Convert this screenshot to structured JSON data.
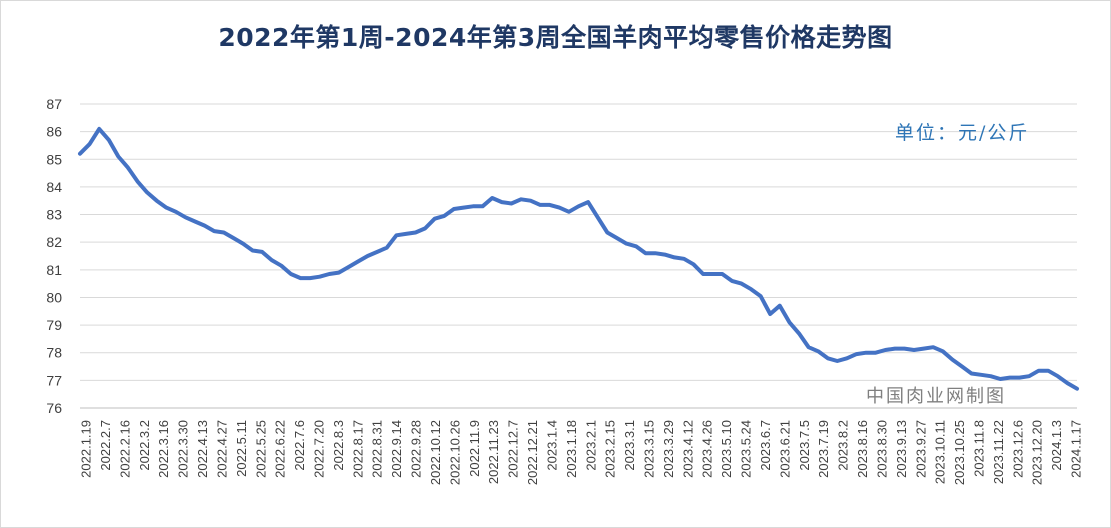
{
  "chart_data": {
    "type": "line",
    "title": "2022年第1周-2024年第3周全国羊肉平均零售价格走势图",
    "unit_label": "单位：元/公斤",
    "source_label": "中国肉业网制图",
    "ylim": [
      76,
      87
    ],
    "yticks": [
      "76",
      "77",
      "78",
      "79",
      "80",
      "81",
      "82",
      "83",
      "84",
      "85",
      "86",
      "87"
    ],
    "grid": true,
    "legend": "none",
    "line_color": "#4472c4",
    "x_tick_labels": [
      "2022.1.19",
      "2022.2.7",
      "2022.2.16",
      "2022.3.2",
      "2022.3.16",
      "2022.3.30",
      "2022.4.13",
      "2022.4.27",
      "2022.5.11",
      "2022.5.25",
      "2022.6.22",
      "2022.7.6",
      "2022.7.20",
      "2022.8.3",
      "2022.8.17",
      "2022.8.31",
      "2022.9.14",
      "2022.9.28",
      "2022.10.12",
      "2022.10.26",
      "2022.11.9",
      "2022.11.23",
      "2022.12.7",
      "2022.12.21",
      "2023.1.4",
      "2023.1.18",
      "2023.2.1",
      "2023.2.15",
      "2023.3.1",
      "2023.3.15",
      "2023.3.29",
      "2023.4.12",
      "2023.4.26",
      "2023.5.10",
      "2023.5.24",
      "2023.6.7",
      "2023.6.21",
      "2023.7.5",
      "2023.7.19",
      "2023.8.2",
      "2023.8.16",
      "2023.8.30",
      "2023.9.13",
      "2023.9.27",
      "2023.10.11",
      "2023.10.25",
      "2023.11.8",
      "2023.11.22",
      "2023.12.6",
      "2023.12.20",
      "2024.1.3",
      "2024.1.17"
    ],
    "values": [
      85.2,
      85.55,
      86.1,
      85.7,
      85.1,
      84.7,
      84.2,
      83.8,
      83.5,
      83.25,
      83.1,
      82.9,
      82.75,
      82.6,
      82.4,
      82.35,
      82.15,
      81.95,
      81.7,
      81.65,
      81.35,
      81.15,
      80.85,
      80.7,
      80.7,
      80.75,
      80.85,
      80.9,
      81.1,
      81.3,
      81.5,
      81.65,
      81.8,
      82.25,
      82.3,
      82.35,
      82.5,
      82.85,
      82.95,
      83.2,
      83.25,
      83.3,
      83.3,
      83.6,
      83.45,
      83.4,
      83.55,
      83.5,
      83.35,
      83.35,
      83.25,
      83.1,
      83.3,
      83.45,
      82.9,
      82.35,
      82.15,
      81.95,
      81.85,
      81.6,
      81.6,
      81.55,
      81.45,
      81.4,
      81.2,
      80.85,
      80.85,
      80.85,
      80.6,
      80.5,
      80.3,
      80.05,
      79.4,
      79.7,
      79.1,
      78.7,
      78.2,
      78.05,
      77.8,
      77.7,
      77.8,
      77.95,
      78.0,
      78.0,
      78.1,
      78.15,
      78.15,
      78.1,
      78.15,
      78.2,
      78.05,
      77.75,
      77.5,
      77.25,
      77.2,
      77.15,
      77.05,
      77.1,
      77.1,
      77.15,
      77.35,
      77.35,
      77.15,
      76.9,
      76.7
    ]
  }
}
